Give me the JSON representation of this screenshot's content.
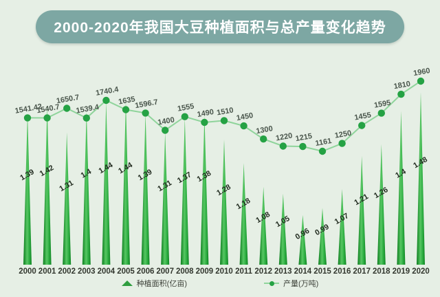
{
  "page": {
    "background": "#e6efe5"
  },
  "title": {
    "text": "2000-2020年我国大豆种植面积与总产量变化趋势",
    "bg": "#7da7a3",
    "text_color": "#ffffff"
  },
  "chart_data": {
    "type": "bar",
    "subtype": "spike-triangle-bars-with-line",
    "title": "2000-2020年我国大豆种植面积与总产量变化趋势",
    "categories": [
      "2000",
      "2001",
      "2002",
      "2003",
      "2004",
      "2005",
      "2006",
      "2007",
      "2008",
      "2009",
      "2010",
      "2011",
      "2012",
      "2013",
      "2014",
      "2015",
      "2016",
      "2017",
      "2018",
      "2019",
      "2020"
    ],
    "series": [
      {
        "name": "种植面积(亿亩)",
        "type": "triangle-bar",
        "values": [
          1.39,
          1.42,
          1.31,
          1.4,
          1.44,
          1.44,
          1.39,
          1.31,
          1.37,
          1.38,
          1.28,
          1.18,
          1.08,
          1.05,
          0.96,
          0.99,
          1.07,
          1.21,
          1.26,
          1.4,
          1.48
        ],
        "color_dark": "#0b7c1d",
        "color_light": "#57c763",
        "label_color": "#222c20"
      },
      {
        "name": "产量(万吨)",
        "type": "line",
        "values": [
          1541.42,
          1540.7,
          1650.7,
          1539.4,
          1740.4,
          1635,
          1596.7,
          1400,
          1555,
          1490,
          1510,
          1450,
          1300,
          1220,
          1215,
          1161,
          1250,
          1455,
          1595,
          1810,
          1960
        ],
        "line_color": "#8fd49b",
        "dot_color": "#25a244",
        "label_color": "#4a564c"
      }
    ],
    "xlabel": "",
    "ylabel": "",
    "axis_label_color": "#33382f",
    "grid": false,
    "y_axis_visible": false,
    "legend_position": "bottom",
    "legend": [
      {
        "icon": "triangle-icon",
        "label": "种植面积(亿亩)"
      },
      {
        "icon": "line-dot-icon",
        "label": "产量(万吨)"
      }
    ]
  }
}
